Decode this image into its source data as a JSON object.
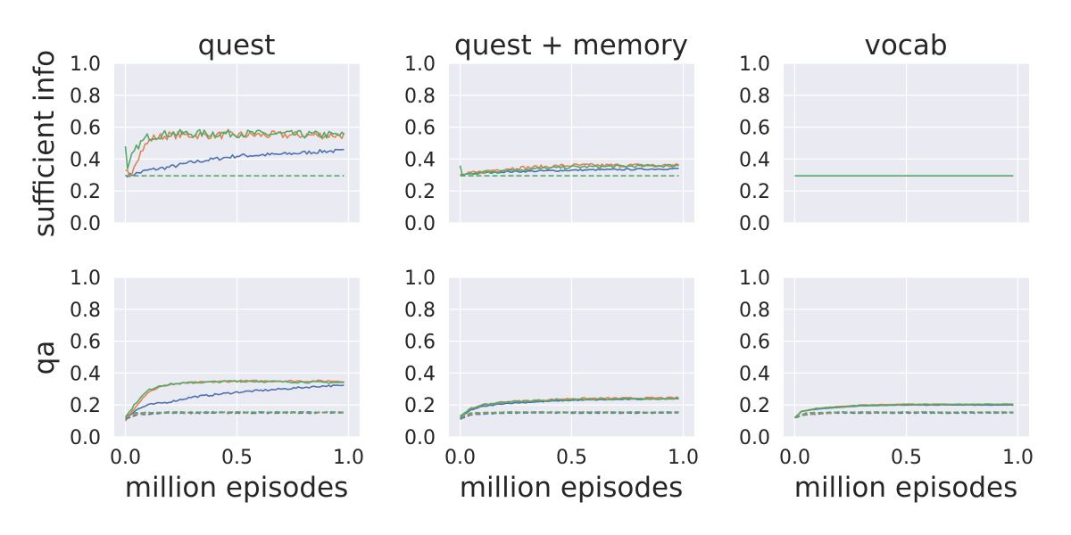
{
  "figure": {
    "column_titles": [
      "quest",
      "quest + memory",
      "vocab"
    ],
    "row_labels": [
      "sufficient info",
      "qa"
    ],
    "xlabel": "million episodes"
  },
  "colors": {
    "background": "#eaeaf2",
    "grid": "#ffffff",
    "text": "#262626",
    "series": [
      "#4c72b0",
      "#dd8452",
      "#55a868"
    ]
  },
  "chart_data": [
    {
      "type": "line",
      "title": "quest",
      "ylabel": "sufficient info",
      "xlabel": "",
      "xlim": [
        -0.05,
        1.05
      ],
      "ylim": [
        0,
        1
      ],
      "xticks": [
        0.0,
        0.5,
        1.0
      ],
      "xtick_labels": [
        "0.0",
        "0.5",
        "1.0"
      ],
      "yticks": [
        0,
        0.2,
        0.4,
        0.6,
        0.8,
        1.0
      ],
      "ytick_labels": [
        "0.0",
        "0.2",
        "0.4",
        "0.6",
        "0.8",
        "1.0"
      ],
      "grid": true,
      "series": [
        {
          "color": "#4c72b0",
          "style": "solid",
          "noise": 0.012,
          "x": [
            0,
            0.02,
            0.05,
            0.1,
            0.2,
            0.3,
            0.5,
            0.7,
            0.9,
            0.98
          ],
          "y": [
            0.3,
            0.3,
            0.31,
            0.33,
            0.35,
            0.38,
            0.42,
            0.43,
            0.45,
            0.45
          ]
        },
        {
          "color": "#dd8452",
          "style": "solid",
          "noise": 0.025,
          "x": [
            0,
            0.02,
            0.05,
            0.08,
            0.12,
            0.2,
            0.5,
            0.98
          ],
          "y": [
            0.33,
            0.3,
            0.4,
            0.47,
            0.53,
            0.55,
            0.55,
            0.55
          ]
        },
        {
          "color": "#55a868",
          "style": "solid",
          "noise": 0.025,
          "x": [
            0,
            0.01,
            0.03,
            0.06,
            0.1,
            0.2,
            0.5,
            0.98
          ],
          "y": [
            0.48,
            0.32,
            0.42,
            0.49,
            0.54,
            0.56,
            0.56,
            0.55
          ]
        },
        {
          "color": "#55a868",
          "style": "dashed",
          "noise": 0,
          "x": [
            0,
            0.98
          ],
          "y": [
            0.295,
            0.295
          ]
        }
      ]
    },
    {
      "type": "line",
      "title": "quest + memory",
      "ylabel": "",
      "xlabel": "",
      "xlim": [
        -0.05,
        1.05
      ],
      "ylim": [
        0,
        1
      ],
      "xticks": [
        0.0,
        0.5,
        1.0
      ],
      "xtick_labels": [
        "0.0",
        "0.5",
        "1.0"
      ],
      "yticks": [
        0,
        0.2,
        0.4,
        0.6,
        0.8,
        1.0
      ],
      "ytick_labels": [
        "0.0",
        "0.2",
        "0.4",
        "0.6",
        "0.8",
        "1.0"
      ],
      "grid": true,
      "series": [
        {
          "color": "#4c72b0",
          "style": "solid",
          "noise": 0.005,
          "x": [
            0,
            0.05,
            0.2,
            0.5,
            0.98
          ],
          "y": [
            0.3,
            0.31,
            0.32,
            0.33,
            0.34
          ]
        },
        {
          "color": "#dd8452",
          "style": "solid",
          "noise": 0.012,
          "x": [
            0,
            0.05,
            0.2,
            0.5,
            0.98
          ],
          "y": [
            0.3,
            0.31,
            0.34,
            0.36,
            0.36
          ]
        },
        {
          "color": "#55a868",
          "style": "solid",
          "noise": 0.01,
          "x": [
            0,
            0.01,
            0.05,
            0.2,
            0.5,
            0.98
          ],
          "y": [
            0.36,
            0.3,
            0.31,
            0.33,
            0.35,
            0.36
          ]
        },
        {
          "color": "#55a868",
          "style": "dashed",
          "noise": 0,
          "x": [
            0,
            0.98
          ],
          "y": [
            0.295,
            0.295
          ]
        }
      ]
    },
    {
      "type": "line",
      "title": "vocab",
      "ylabel": "",
      "xlabel": "",
      "xlim": [
        -0.05,
        1.05
      ],
      "ylim": [
        0,
        1
      ],
      "xticks": [
        0.0,
        0.5,
        1.0
      ],
      "xtick_labels": [
        "0.0",
        "0.5",
        "1.0"
      ],
      "yticks": [
        0,
        0.2,
        0.4,
        0.6,
        0.8,
        1.0
      ],
      "ytick_labels": [
        "0.0",
        "0.2",
        "0.4",
        "0.6",
        "0.8",
        "1.0"
      ],
      "grid": true,
      "series": [
        {
          "color": "#55a868",
          "style": "solid",
          "noise": 0,
          "x": [
            0,
            0.98
          ],
          "y": [
            0.295,
            0.295
          ]
        }
      ]
    },
    {
      "type": "line",
      "title": "",
      "ylabel": "qa",
      "xlabel": "million episodes",
      "xlim": [
        -0.05,
        1.05
      ],
      "ylim": [
        0,
        1
      ],
      "xticks": [
        0.0,
        0.5,
        1.0
      ],
      "xtick_labels": [
        "0.0",
        "0.5",
        "1.0"
      ],
      "yticks": [
        0,
        0.2,
        0.4,
        0.6,
        0.8,
        1.0
      ],
      "ytick_labels": [
        "0.0",
        "0.2",
        "0.4",
        "0.6",
        "0.8",
        "1.0"
      ],
      "grid": true,
      "series": [
        {
          "color": "#4c72b0",
          "style": "solid",
          "noise": 0.006,
          "x": [
            0,
            0.05,
            0.1,
            0.2,
            0.3,
            0.5,
            0.7,
            0.9,
            0.98
          ],
          "y": [
            0.12,
            0.17,
            0.2,
            0.22,
            0.25,
            0.28,
            0.3,
            0.32,
            0.32
          ]
        },
        {
          "color": "#dd8452",
          "style": "solid",
          "noise": 0.006,
          "x": [
            0,
            0.05,
            0.1,
            0.15,
            0.2,
            0.3,
            0.5,
            0.98
          ],
          "y": [
            0.1,
            0.2,
            0.28,
            0.31,
            0.33,
            0.34,
            0.35,
            0.35
          ]
        },
        {
          "color": "#55a868",
          "style": "solid",
          "noise": 0.006,
          "x": [
            0,
            0.05,
            0.1,
            0.15,
            0.2,
            0.3,
            0.5,
            0.98
          ],
          "y": [
            0.12,
            0.22,
            0.29,
            0.32,
            0.33,
            0.34,
            0.35,
            0.34
          ]
        },
        {
          "color": "#4c72b0",
          "style": "dashed",
          "noise": 0.003,
          "x": [
            0,
            0.05,
            0.2,
            0.98
          ],
          "y": [
            0.11,
            0.14,
            0.15,
            0.15
          ]
        },
        {
          "color": "#dd8452",
          "style": "dashed",
          "noise": 0.003,
          "x": [
            0,
            0.05,
            0.2,
            0.98
          ],
          "y": [
            0.12,
            0.145,
            0.155,
            0.155
          ]
        },
        {
          "color": "#55a868",
          "style": "dashed",
          "noise": 0.003,
          "x": [
            0,
            0.05,
            0.2,
            0.98
          ],
          "y": [
            0.13,
            0.15,
            0.155,
            0.155
          ]
        }
      ]
    },
    {
      "type": "line",
      "title": "",
      "ylabel": "",
      "xlabel": "million episodes",
      "xlim": [
        -0.05,
        1.05
      ],
      "ylim": [
        0,
        1
      ],
      "xticks": [
        0.0,
        0.5,
        1.0
      ],
      "xtick_labels": [
        "0.0",
        "0.5",
        "1.0"
      ],
      "yticks": [
        0,
        0.2,
        0.4,
        0.6,
        0.8,
        1.0
      ],
      "ytick_labels": [
        "0.0",
        "0.2",
        "0.4",
        "0.6",
        "0.8",
        "1.0"
      ],
      "grid": true,
      "series": [
        {
          "color": "#4c72b0",
          "style": "solid",
          "noise": 0.003,
          "x": [
            0,
            0.05,
            0.1,
            0.2,
            0.5,
            0.98
          ],
          "y": [
            0.12,
            0.17,
            0.19,
            0.21,
            0.23,
            0.24
          ]
        },
        {
          "color": "#dd8452",
          "style": "solid",
          "noise": 0.005,
          "x": [
            0,
            0.05,
            0.1,
            0.2,
            0.5,
            0.98
          ],
          "y": [
            0.12,
            0.18,
            0.2,
            0.22,
            0.24,
            0.245
          ]
        },
        {
          "color": "#55a868",
          "style": "solid",
          "noise": 0.004,
          "x": [
            0,
            0.05,
            0.1,
            0.2,
            0.5,
            0.98
          ],
          "y": [
            0.13,
            0.18,
            0.2,
            0.22,
            0.235,
            0.24
          ]
        },
        {
          "color": "#4c72b0",
          "style": "dashed",
          "noise": 0.002,
          "x": [
            0,
            0.05,
            0.2,
            0.98
          ],
          "y": [
            0.11,
            0.14,
            0.15,
            0.15
          ]
        },
        {
          "color": "#dd8452",
          "style": "dashed",
          "noise": 0.002,
          "x": [
            0,
            0.05,
            0.2,
            0.98
          ],
          "y": [
            0.12,
            0.145,
            0.155,
            0.155
          ]
        },
        {
          "color": "#55a868",
          "style": "dashed",
          "noise": 0.002,
          "x": [
            0,
            0.05,
            0.2,
            0.98
          ],
          "y": [
            0.12,
            0.15,
            0.155,
            0.155
          ]
        }
      ]
    },
    {
      "type": "line",
      "title": "",
      "ylabel": "",
      "xlabel": "million episodes",
      "xlim": [
        -0.05,
        1.05
      ],
      "ylim": [
        0,
        1
      ],
      "xticks": [
        0.0,
        0.5,
        1.0
      ],
      "xtick_labels": [
        "0.0",
        "0.5",
        "1.0"
      ],
      "yticks": [
        0,
        0.2,
        0.4,
        0.6,
        0.8,
        1.0
      ],
      "ytick_labels": [
        "0.0",
        "0.2",
        "0.4",
        "0.6",
        "0.8",
        "1.0"
      ],
      "grid": true,
      "series": [
        {
          "color": "#4c72b0",
          "style": "solid",
          "noise": 0.001,
          "x": [
            0,
            0.03,
            0.1,
            0.3,
            0.5,
            0.98
          ],
          "y": [
            0.12,
            0.16,
            0.175,
            0.195,
            0.2,
            0.2
          ]
        },
        {
          "color": "#dd8452",
          "style": "solid",
          "noise": 0.002,
          "x": [
            0,
            0.03,
            0.1,
            0.3,
            0.5,
            0.98
          ],
          "y": [
            0.12,
            0.16,
            0.18,
            0.2,
            0.205,
            0.205
          ]
        },
        {
          "color": "#55a868",
          "style": "solid",
          "noise": 0.002,
          "x": [
            0,
            0.03,
            0.1,
            0.3,
            0.5,
            0.98
          ],
          "y": [
            0.12,
            0.16,
            0.178,
            0.198,
            0.202,
            0.205
          ]
        },
        {
          "color": "#4c72b0",
          "style": "dashed",
          "noise": 0.002,
          "x": [
            0,
            0.05,
            0.2,
            0.98
          ],
          "y": [
            0.12,
            0.14,
            0.15,
            0.15
          ]
        },
        {
          "color": "#dd8452",
          "style": "dashed",
          "noise": 0.002,
          "x": [
            0,
            0.05,
            0.2,
            0.98
          ],
          "y": [
            0.12,
            0.145,
            0.155,
            0.155
          ]
        },
        {
          "color": "#55a868",
          "style": "dashed",
          "noise": 0.002,
          "x": [
            0,
            0.05,
            0.2,
            0.98
          ],
          "y": [
            0.12,
            0.15,
            0.155,
            0.155
          ]
        }
      ]
    }
  ]
}
